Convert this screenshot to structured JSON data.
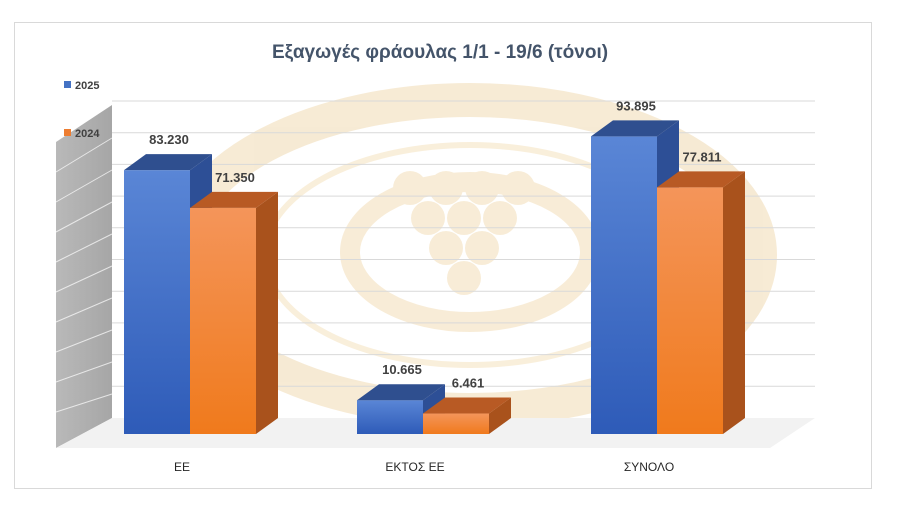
{
  "chart_data": {
    "type": "bar",
    "title": "Εξαγωγές φράουλας 1/1 -  19/6 (τόνοι)",
    "xlabel": "",
    "ylabel": "",
    "categories": [
      "ΕΕ",
      "ΕΚΤΟΣ ΕΕ",
      "ΣΥΝΟΛΟ"
    ],
    "series": [
      {
        "name": "2025",
        "values": [
          83.23,
          10.665,
          93.895
        ],
        "labels": [
          "83.230",
          "10.665",
          "93.895"
        ],
        "color": "#4472c4"
      },
      {
        "name": "2024",
        "values": [
          71.35,
          6.461,
          77.811
        ],
        "labels": [
          "71.350",
          "6.461",
          "77.811"
        ],
        "color": "#ed7d31"
      }
    ],
    "ylim": [
      0,
      100
    ],
    "grid": true,
    "legend": "top-left",
    "style": "3d-clustered-column"
  }
}
